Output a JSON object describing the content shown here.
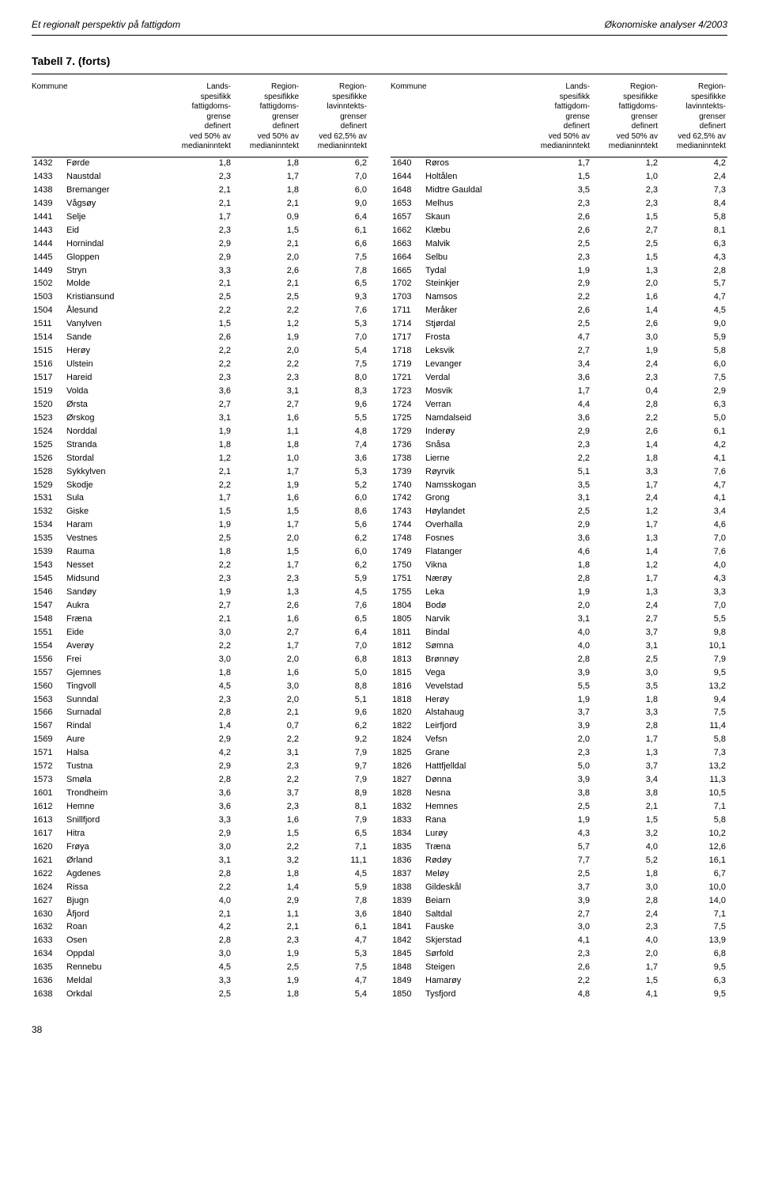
{
  "header": {
    "left": "Et regionalt perspektiv på fattigdom",
    "right": "Økonomiske analyser 4/2003"
  },
  "table_title": "Tabell 7. (forts)",
  "colhead": {
    "kommune": "Kommune",
    "c1": "Lands-\nspesifikk\nfattigdoms-\ngrense\ndefinert\nved 50% av\nmedianinntekt",
    "c2": "Region-\nspesifikke\nfattigdoms-\ngrenser\ndefinert\nved 50% av\nmedianinntekt",
    "c3": "Region-\nspesifikke\nlavinntekts-\ngrenser\ndefinert\nved 62,5% av\nmedianinntekt",
    "c1b": "Lands-\nspesifikk\nfattigdom-\ngrense\ndefinert\nved 50% av\nmedianinntekt"
  },
  "left_rows": [
    [
      "1432",
      "Førde",
      "1,8",
      "1,8",
      "6,2"
    ],
    [
      "1433",
      "Naustdal",
      "2,3",
      "1,7",
      "7,0"
    ],
    [
      "1438",
      "Bremanger",
      "2,1",
      "1,8",
      "6,0"
    ],
    [
      "1439",
      "Vågsøy",
      "2,1",
      "2,1",
      "9,0"
    ],
    [
      "1441",
      "Selje",
      "1,7",
      "0,9",
      "6,4"
    ],
    [
      "1443",
      "Eid",
      "2,3",
      "1,5",
      "6,1"
    ],
    [
      "1444",
      "Hornindal",
      "2,9",
      "2,1",
      "6,6"
    ],
    [
      "1445",
      "Gloppen",
      "2,9",
      "2,0",
      "7,5"
    ],
    [
      "1449",
      "Stryn",
      "3,3",
      "2,6",
      "7,8"
    ],
    [
      "1502",
      "Molde",
      "2,1",
      "2,1",
      "6,5"
    ],
    [
      "1503",
      "Kristiansund",
      "2,5",
      "2,5",
      "9,3"
    ],
    [
      "1504",
      "Ålesund",
      "2,2",
      "2,2",
      "7,6"
    ],
    [
      "1511",
      "Vanylven",
      "1,5",
      "1,2",
      "5,3"
    ],
    [
      "1514",
      "Sande",
      "2,6",
      "1,9",
      "7,0"
    ],
    [
      "1515",
      "Herøy",
      "2,2",
      "2,0",
      "5,4"
    ],
    [
      "1516",
      "Ulstein",
      "2,2",
      "2,2",
      "7,5"
    ],
    [
      "1517",
      "Hareid",
      "2,3",
      "2,3",
      "8,0"
    ],
    [
      "1519",
      "Volda",
      "3,6",
      "3,1",
      "8,3"
    ],
    [
      "1520",
      "Ørsta",
      "2,7",
      "2,7",
      "9,6"
    ],
    [
      "1523",
      "Ørskog",
      "3,1",
      "1,6",
      "5,5"
    ],
    [
      "1524",
      "Norddal",
      "1,9",
      "1,1",
      "4,8"
    ],
    [
      "1525",
      "Stranda",
      "1,8",
      "1,8",
      "7,4"
    ],
    [
      "1526",
      "Stordal",
      "1,2",
      "1,0",
      "3,6"
    ],
    [
      "1528",
      "Sykkylven",
      "2,1",
      "1,7",
      "5,3"
    ],
    [
      "1529",
      "Skodje",
      "2,2",
      "1,9",
      "5,2"
    ],
    [
      "1531",
      "Sula",
      "1,7",
      "1,6",
      "6,0"
    ],
    [
      "1532",
      "Giske",
      "1,5",
      "1,5",
      "8,6"
    ],
    [
      "1534",
      "Haram",
      "1,9",
      "1,7",
      "5,6"
    ],
    [
      "1535",
      "Vestnes",
      "2,5",
      "2,0",
      "6,2"
    ],
    [
      "1539",
      "Rauma",
      "1,8",
      "1,5",
      "6,0"
    ],
    [
      "1543",
      "Nesset",
      "2,2",
      "1,7",
      "6,2"
    ],
    [
      "1545",
      "Midsund",
      "2,3",
      "2,3",
      "5,9"
    ],
    [
      "1546",
      "Sandøy",
      "1,9",
      "1,3",
      "4,5"
    ],
    [
      "1547",
      "Aukra",
      "2,7",
      "2,6",
      "7,6"
    ],
    [
      "1548",
      "Fræna",
      "2,1",
      "1,6",
      "6,5"
    ],
    [
      "1551",
      "Eide",
      "3,0",
      "2,7",
      "6,4"
    ],
    [
      "1554",
      "Averøy",
      "2,2",
      "1,7",
      "7,0"
    ],
    [
      "1556",
      "Frei",
      "3,0",
      "2,0",
      "6,8"
    ],
    [
      "1557",
      "Gjemnes",
      "1,8",
      "1,6",
      "5,0"
    ],
    [
      "1560",
      "Tingvoll",
      "4,5",
      "3,0",
      "8,8"
    ],
    [
      "1563",
      "Sunndal",
      "2,3",
      "2,0",
      "5,1"
    ],
    [
      "1566",
      "Surnadal",
      "2,8",
      "2,1",
      "9,6"
    ],
    [
      "1567",
      "Rindal",
      "1,4",
      "0,7",
      "6,2"
    ],
    [
      "1569",
      "Aure",
      "2,9",
      "2,2",
      "9,2"
    ],
    [
      "1571",
      "Halsa",
      "4,2",
      "3,1",
      "7,9"
    ],
    [
      "1572",
      "Tustna",
      "2,9",
      "2,3",
      "9,7"
    ],
    [
      "1573",
      "Smøla",
      "2,8",
      "2,2",
      "7,9"
    ],
    [
      "1601",
      "Trondheim",
      "3,6",
      "3,7",
      "8,9"
    ],
    [
      "1612",
      "Hemne",
      "3,6",
      "2,3",
      "8,1"
    ],
    [
      "1613",
      "Snillfjord",
      "3,3",
      "1,6",
      "7,9"
    ],
    [
      "1617",
      "Hitra",
      "2,9",
      "1,5",
      "6,5"
    ],
    [
      "1620",
      "Frøya",
      "3,0",
      "2,2",
      "7,1"
    ],
    [
      "1621",
      "Ørland",
      "3,1",
      "3,2",
      "11,1"
    ],
    [
      "1622",
      "Agdenes",
      "2,8",
      "1,8",
      "4,5"
    ],
    [
      "1624",
      "Rissa",
      "2,2",
      "1,4",
      "5,9"
    ],
    [
      "1627",
      "Bjugn",
      "4,0",
      "2,9",
      "7,8"
    ],
    [
      "1630",
      "Åfjord",
      "2,1",
      "1,1",
      "3,6"
    ],
    [
      "1632",
      "Roan",
      "4,2",
      "2,1",
      "6,1"
    ],
    [
      "1633",
      "Osen",
      "2,8",
      "2,3",
      "4,7"
    ],
    [
      "1634",
      "Oppdal",
      "3,0",
      "1,9",
      "5,3"
    ],
    [
      "1635",
      "Rennebu",
      "4,5",
      "2,5",
      "7,5"
    ],
    [
      "1636",
      "Meldal",
      "3,3",
      "1,9",
      "4,7"
    ],
    [
      "1638",
      "Orkdal",
      "2,5",
      "1,8",
      "5,4"
    ]
  ],
  "right_rows": [
    [
      "1640",
      "Røros",
      "1,7",
      "1,2",
      "4,2"
    ],
    [
      "1644",
      "Holtålen",
      "1,5",
      "1,0",
      "2,4"
    ],
    [
      "1648",
      "Midtre Gauldal",
      "3,5",
      "2,3",
      "7,3"
    ],
    [
      "1653",
      "Melhus",
      "2,3",
      "2,3",
      "8,4"
    ],
    [
      "1657",
      "Skaun",
      "2,6",
      "1,5",
      "5,8"
    ],
    [
      "1662",
      "Klæbu",
      "2,6",
      "2,7",
      "8,1"
    ],
    [
      "1663",
      "Malvik",
      "2,5",
      "2,5",
      "6,3"
    ],
    [
      "1664",
      "Selbu",
      "2,3",
      "1,5",
      "4,3"
    ],
    [
      "1665",
      "Tydal",
      "1,9",
      "1,3",
      "2,8"
    ],
    [
      "1702",
      "Steinkjer",
      "2,9",
      "2,0",
      "5,7"
    ],
    [
      "1703",
      "Namsos",
      "2,2",
      "1,6",
      "4,7"
    ],
    [
      "1711",
      "Meråker",
      "2,6",
      "1,4",
      "4,5"
    ],
    [
      "1714",
      "Stjørdal",
      "2,5",
      "2,6",
      "9,0"
    ],
    [
      "1717",
      "Frosta",
      "4,7",
      "3,0",
      "5,9"
    ],
    [
      "1718",
      "Leksvik",
      "2,7",
      "1,9",
      "5,8"
    ],
    [
      "1719",
      "Levanger",
      "3,4",
      "2,4",
      "6,0"
    ],
    [
      "1721",
      "Verdal",
      "3,6",
      "2,3",
      "7,5"
    ],
    [
      "1723",
      "Mosvik",
      "1,7",
      "0,4",
      "2,9"
    ],
    [
      "1724",
      "Verran",
      "4,4",
      "2,8",
      "6,3"
    ],
    [
      "1725",
      "Namdalseid",
      "3,6",
      "2,2",
      "5,0"
    ],
    [
      "1729",
      "Inderøy",
      "2,9",
      "2,6",
      "6,1"
    ],
    [
      "1736",
      "Snåsa",
      "2,3",
      "1,4",
      "4,2"
    ],
    [
      "1738",
      "Lierne",
      "2,2",
      "1,8",
      "4,1"
    ],
    [
      "1739",
      "Røyrvik",
      "5,1",
      "3,3",
      "7,6"
    ],
    [
      "1740",
      "Namsskogan",
      "3,5",
      "1,7",
      "4,7"
    ],
    [
      "1742",
      "Grong",
      "3,1",
      "2,4",
      "4,1"
    ],
    [
      "1743",
      "Høylandet",
      "2,5",
      "1,2",
      "3,4"
    ],
    [
      "1744",
      "Overhalla",
      "2,9",
      "1,7",
      "4,6"
    ],
    [
      "1748",
      "Fosnes",
      "3,6",
      "1,3",
      "7,0"
    ],
    [
      "1749",
      "Flatanger",
      "4,6",
      "1,4",
      "7,6"
    ],
    [
      "1750",
      "Vikna",
      "1,8",
      "1,2",
      "4,0"
    ],
    [
      "1751",
      "Nærøy",
      "2,8",
      "1,7",
      "4,3"
    ],
    [
      "1755",
      "Leka",
      "1,9",
      "1,3",
      "3,3"
    ],
    [
      "1804",
      "Bodø",
      "2,0",
      "2,4",
      "7,0"
    ],
    [
      "1805",
      "Narvik",
      "3,1",
      "2,7",
      "5,5"
    ],
    [
      "1811",
      "Bindal",
      "4,0",
      "3,7",
      "9,8"
    ],
    [
      "1812",
      "Sømna",
      "4,0",
      "3,1",
      "10,1"
    ],
    [
      "1813",
      "Brønnøy",
      "2,8",
      "2,5",
      "7,9"
    ],
    [
      "1815",
      "Vega",
      "3,9",
      "3,0",
      "9,5"
    ],
    [
      "1816",
      "Vevelstad",
      "5,5",
      "3,5",
      "13,2"
    ],
    [
      "1818",
      "Herøy",
      "1,9",
      "1,8",
      "9,4"
    ],
    [
      "1820",
      "Alstahaug",
      "3,7",
      "3,3",
      "7,5"
    ],
    [
      "1822",
      "Leirfjord",
      "3,9",
      "2,8",
      "11,4"
    ],
    [
      "1824",
      "Vefsn",
      "2,0",
      "1,7",
      "5,8"
    ],
    [
      "1825",
      "Grane",
      "2,3",
      "1,3",
      "7,3"
    ],
    [
      "1826",
      "Hattfjelldal",
      "5,0",
      "3,7",
      "13,2"
    ],
    [
      "1827",
      "Dønna",
      "3,9",
      "3,4",
      "11,3"
    ],
    [
      "1828",
      "Nesna",
      "3,8",
      "3,8",
      "10,5"
    ],
    [
      "1832",
      "Hemnes",
      "2,5",
      "2,1",
      "7,1"
    ],
    [
      "1833",
      "Rana",
      "1,9",
      "1,5",
      "5,8"
    ],
    [
      "1834",
      "Lurøy",
      "4,3",
      "3,2",
      "10,2"
    ],
    [
      "1835",
      "Træna",
      "5,7",
      "4,0",
      "12,6"
    ],
    [
      "1836",
      "Rødøy",
      "7,7",
      "5,2",
      "16,1"
    ],
    [
      "1837",
      "Meløy",
      "2,5",
      "1,8",
      "6,7"
    ],
    [
      "1838",
      "Gildeskål",
      "3,7",
      "3,0",
      "10,0"
    ],
    [
      "1839",
      "Beiarn",
      "3,9",
      "2,8",
      "14,0"
    ],
    [
      "1840",
      "Saltdal",
      "2,7",
      "2,4",
      "7,1"
    ],
    [
      "1841",
      "Fauske",
      "3,0",
      "2,3",
      "7,5"
    ],
    [
      "1842",
      "Skjerstad",
      "4,1",
      "4,0",
      "13,9"
    ],
    [
      "1845",
      "Sørfold",
      "2,3",
      "2,0",
      "6,8"
    ],
    [
      "1848",
      "Steigen",
      "2,6",
      "1,7",
      "9,5"
    ],
    [
      "1849",
      "Hamarøy",
      "2,2",
      "1,5",
      "6,3"
    ],
    [
      "1850",
      "Tysfjord",
      "4,8",
      "4,1",
      "9,5"
    ]
  ],
  "page_number": "38"
}
